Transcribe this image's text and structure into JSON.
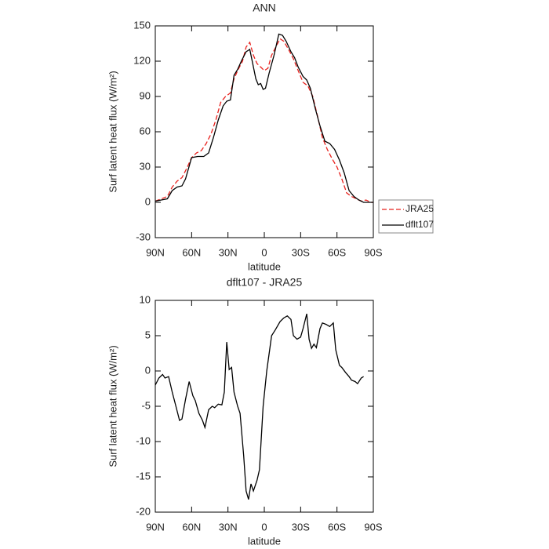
{
  "chart_data": [
    {
      "type": "line",
      "title": "ANN",
      "xlabel": "latitude",
      "ylabel": "Surf latent heat flux (W/m²)",
      "xlim": [
        90,
        -90
      ],
      "xticks": [
        {
          "value": 90,
          "label": "90N"
        },
        {
          "value": 60,
          "label": "60N"
        },
        {
          "value": 30,
          "label": "30N"
        },
        0,
        {
          "value": -30,
          "label": "30S"
        },
        {
          "value": -60,
          "label": "60S"
        },
        {
          "value": -90,
          "label": "90S"
        }
      ],
      "ylim": [
        -30,
        150
      ],
      "yticks": [
        -30,
        0,
        30,
        60,
        90,
        120,
        150
      ],
      "legend": "right",
      "series": [
        {
          "name": "JRA25",
          "color": "#e8201c",
          "line_style": "dashed",
          "x": [
            90,
            85,
            80,
            76,
            72,
            68,
            64,
            60,
            56,
            52,
            48,
            44,
            40,
            36,
            32,
            28,
            25,
            22,
            18,
            15,
            12,
            9,
            6,
            3,
            0,
            -3,
            -6,
            -10,
            -13,
            -16,
            -20,
            -24,
            -28,
            -32,
            -36,
            -40,
            -44,
            -48,
            -52,
            -56,
            -60,
            -64,
            -68,
            -72,
            -76,
            -80,
            -84,
            -88,
            -90
          ],
          "values": [
            1,
            3,
            5,
            13,
            18,
            21,
            29,
            38,
            42,
            44,
            50,
            58,
            70,
            85,
            90,
            93,
            105,
            112,
            120,
            132,
            136,
            125,
            118,
            115,
            112,
            114,
            125,
            133,
            139,
            137,
            130,
            122,
            112,
            102,
            99,
            90,
            73,
            55,
            45,
            37,
            30,
            20,
            8,
            5,
            3,
            1,
            2,
            0,
            0
          ]
        },
        {
          "name": "dflt107",
          "color": "#000000",
          "line_style": "solid",
          "x": [
            90,
            85,
            80,
            76,
            72,
            68,
            65,
            60,
            55,
            50,
            46,
            42,
            38,
            34,
            31,
            28,
            25,
            22,
            19,
            15,
            12,
            10,
            7,
            5,
            3,
            1,
            -1,
            -4,
            -8,
            -12,
            -15,
            -18,
            -22,
            -25,
            -28,
            -32,
            -35,
            -38,
            -42,
            -46,
            -50,
            -54,
            -58,
            -62,
            -66,
            -70,
            -74,
            -78,
            -82,
            -86,
            -90
          ],
          "values": [
            1,
            2,
            3,
            10,
            13,
            14,
            20,
            38,
            39,
            39,
            42,
            55,
            70,
            82,
            86,
            87,
            108,
            113,
            120,
            128,
            130,
            120,
            105,
            100,
            101,
            96,
            97,
            110,
            125,
            143,
            142,
            137,
            128,
            123,
            115,
            107,
            104,
            97,
            80,
            65,
            52,
            50,
            45,
            36,
            25,
            10,
            5,
            2,
            0,
            0,
            0
          ]
        }
      ]
    },
    {
      "type": "line",
      "title": "dflt107 - JRA25",
      "xlabel": "latitude",
      "ylabel": "Surf latent heat flux (W/m²)",
      "xlim": [
        90,
        -90
      ],
      "xticks": [
        {
          "value": 90,
          "label": "90N"
        },
        {
          "value": 60,
          "label": "60N"
        },
        {
          "value": 30,
          "label": "30N"
        },
        0,
        {
          "value": -30,
          "label": "30S"
        },
        {
          "value": -60,
          "label": "60S"
        },
        {
          "value": -90,
          "label": "90S"
        }
      ],
      "ylim": [
        -20,
        10
      ],
      "yticks": [
        -20,
        -15,
        -10,
        -5,
        0,
        5,
        10
      ],
      "series": [
        {
          "color": "#000000",
          "line_style": "solid",
          "x": [
            90,
            87,
            84,
            82,
            79,
            76,
            73,
            70,
            68,
            65,
            62,
            59,
            57,
            54,
            51,
            49,
            46,
            43,
            41,
            38,
            35,
            33,
            31,
            29,
            27,
            25,
            22,
            20,
            17,
            15,
            13,
            11,
            9,
            6,
            4,
            1,
            -2,
            -6,
            -9,
            -13,
            -16,
            -19,
            -22,
            -24,
            -27,
            -30,
            -32,
            -35,
            -37,
            -39,
            -41,
            -43,
            -46,
            -48,
            -51,
            -54,
            -57,
            -59,
            -62,
            -64,
            -67,
            -70,
            -72,
            -75,
            -77,
            -80,
            -82
          ],
          "values": [
            -2,
            -1,
            -0.5,
            -1,
            -0.8,
            -3,
            -5,
            -7,
            -6.8,
            -4,
            -1.5,
            -3.5,
            -4.2,
            -6,
            -7,
            -8,
            -5.5,
            -5,
            -5.2,
            -4.7,
            -4.8,
            -3,
            4.1,
            0.2,
            0.5,
            -3,
            -5,
            -6,
            -12,
            -17,
            -18.2,
            -16,
            -17,
            -15.5,
            -14,
            -5,
            0,
            5,
            5.8,
            7,
            7.5,
            7.8,
            7.3,
            5,
            4.5,
            4.8,
            6,
            8.1,
            4.5,
            3.2,
            3.8,
            3.3,
            6,
            6.8,
            6.6,
            6.3,
            6.8,
            3,
            0.8,
            0.5,
            -0.2,
            -0.8,
            -1.3,
            -1.5,
            -1.8,
            -1,
            -0.8
          ]
        }
      ]
    }
  ]
}
